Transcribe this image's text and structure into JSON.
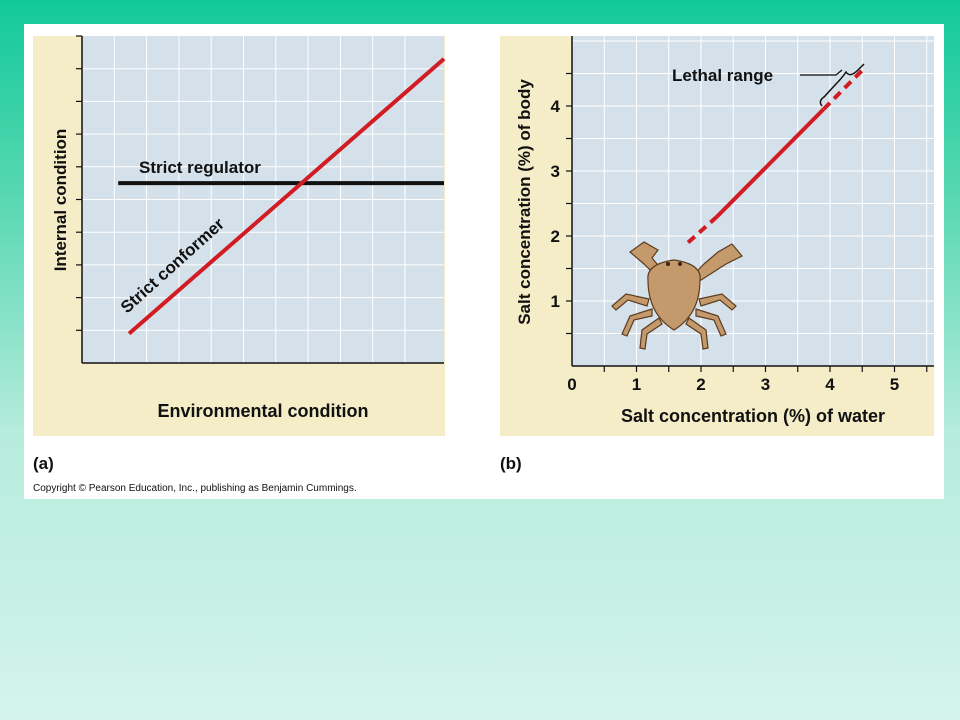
{
  "chart_data": [
    {
      "type": "line",
      "panel_label": "(a)",
      "xlabel": "Environmental condition",
      "ylabel": "Internal condition",
      "xlim": [
        0,
        10
      ],
      "ylim": [
        0,
        10
      ],
      "grid": true,
      "series": [
        {
          "name": "Strict regulator",
          "color": "#111111",
          "x": [
            1,
            10
          ],
          "y": [
            5.5,
            5.5
          ]
        },
        {
          "name": "Strict conformer",
          "color": "#d21c24",
          "x": [
            1.3,
            10
          ],
          "y": [
            0.9,
            9.3
          ]
        }
      ]
    },
    {
      "type": "line",
      "panel_label": "(b)",
      "xlabel": "Salt concentration (%) of water",
      "ylabel": "Salt concentration (%) of body",
      "xlim": [
        0,
        5.6
      ],
      "ylim": [
        0,
        5
      ],
      "xticks": [
        0,
        1,
        2,
        3,
        4,
        5
      ],
      "yticks": [
        1,
        2,
        3,
        4
      ],
      "grid": true,
      "annotation": "Lethal range",
      "series": [
        {
          "name": "",
          "color": "#d21c24",
          "style": "dashed",
          "x": [
            1.8,
            2.25
          ],
          "y": [
            1.9,
            2.3
          ]
        },
        {
          "name": "",
          "color": "#d21c24",
          "style": "solid",
          "x": [
            2.25,
            3.9
          ],
          "y": [
            2.3,
            3.95
          ]
        },
        {
          "name": "",
          "color": "#d21c24",
          "style": "dashed",
          "x": [
            3.9,
            4.55
          ],
          "y": [
            3.95,
            4.6
          ]
        }
      ]
    }
  ],
  "copyright": "Copyright © Pearson Education, Inc., publishing as Benjamin Cummings.",
  "colors": {
    "plot_bg": "#d4e0ea",
    "margin_bg": "#f5ecc8",
    "grid": "#ffffff",
    "line_red": "#d21c24",
    "crab_fill": "#c49a6c"
  },
  "icons": {
    "crab": "crab-illustration"
  }
}
